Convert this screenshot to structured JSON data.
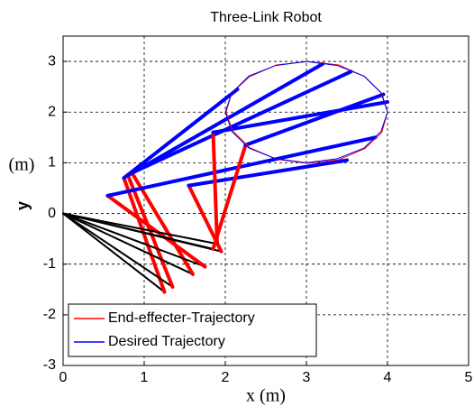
{
  "chart_data": {
    "type": "line",
    "title": "Three-Link Robot",
    "xlabel": "x (m)",
    "ylabel": "y",
    "ylabel_unit": "(m)",
    "xlim": [
      0,
      5
    ],
    "ylim": [
      -3,
      3.5
    ],
    "xticks": [
      0,
      1,
      2,
      3,
      4,
      5
    ],
    "yticks": [
      -3,
      -2,
      -1,
      0,
      1,
      2,
      3
    ],
    "grid": true,
    "legend": "lower left",
    "series": [
      {
        "name": "End-effecter-Trajectory",
        "color": "#ff0000",
        "x": [
          4,
          3.93,
          3.72,
          3.4,
          3.02,
          2.63,
          2.3,
          2.08,
          2.01,
          2.09,
          2.3,
          2.63,
          3.02,
          3.4,
          3.72,
          3.93,
          4
        ],
        "values": [
          2,
          2.37,
          2.7,
          2.93,
          3.0,
          2.93,
          2.7,
          2.38,
          2,
          1.63,
          1.3,
          1.07,
          0.99,
          1.06,
          1.28,
          1.6,
          2
        ]
      },
      {
        "name": "Desired Trajectory",
        "color": "#0000ff",
        "x": [
          4,
          3.92,
          3.71,
          3.38,
          3,
          2.62,
          2.29,
          2.08,
          2,
          2.08,
          2.29,
          2.62,
          3,
          3.38,
          3.71,
          3.92,
          4
        ],
        "values": [
          2,
          2.38,
          2.71,
          2.92,
          3,
          2.92,
          2.71,
          2.38,
          2,
          1.62,
          1.29,
          1.08,
          1,
          1.08,
          1.29,
          1.62,
          2
        ]
      }
    ],
    "link_colors": [
      "#000000",
      "#ff0000",
      "#0000ff"
    ],
    "links": [
      {
        "x": [
          0,
          1.25,
          0.75,
          2.15
        ],
        "y": [
          0,
          -1.55,
          0.7,
          2.45
        ]
      },
      {
        "x": [
          0,
          1.35,
          0.8,
          3.2
        ],
        "y": [
          0,
          -1.45,
          0.75,
          2.95
        ]
      },
      {
        "x": [
          0,
          1.6,
          0.85,
          3.55
        ],
        "y": [
          0,
          -1.2,
          0.8,
          2.8
        ]
      },
      {
        "x": [
          0,
          1.75,
          0.55,
          3.85
        ],
        "y": [
          0,
          -1.05,
          0.35,
          1.5
        ]
      },
      {
        "x": [
          0,
          1.95,
          1.55,
          3.5
        ],
        "y": [
          0,
          -0.75,
          0.55,
          1.05
        ]
      },
      {
        "x": [
          0,
          1.9,
          1.85,
          4.0
        ],
        "y": [
          0,
          -0.6,
          1.6,
          2.2
        ]
      },
      {
        "x": [
          0,
          1.85,
          2.25,
          3.95
        ],
        "y": [
          0,
          -0.7,
          1.35,
          2.35
        ]
      }
    ]
  }
}
